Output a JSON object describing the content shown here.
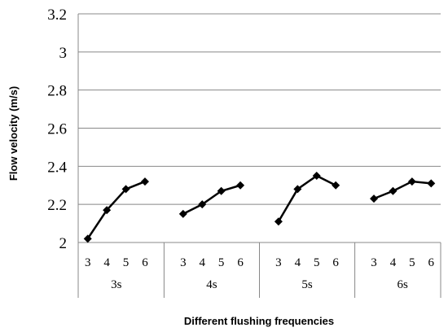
{
  "chart_data": {
    "type": "line",
    "title": "",
    "xlabel": "Different flushing frequencies",
    "ylabel": "Flow velocity (m/s)",
    "ylim": [
      2,
      3.2
    ],
    "yticks": [
      "2",
      "2.2",
      "2.4",
      "2.6",
      "2.8",
      "3",
      "3.2"
    ],
    "grid": true,
    "legend": "none",
    "color": "#000000",
    "groups": [
      {
        "label": "3s",
        "categories": [
          "3",
          "4",
          "5",
          "6"
        ],
        "values": [
          2.02,
          2.17,
          2.28,
          2.32
        ]
      },
      {
        "label": "4s",
        "categories": [
          "3",
          "4",
          "5",
          "6"
        ],
        "values": [
          2.15,
          2.2,
          2.27,
          2.3
        ]
      },
      {
        "label": "5s",
        "categories": [
          "3",
          "4",
          "5",
          "6"
        ],
        "values": [
          2.11,
          2.28,
          2.35,
          2.3
        ]
      },
      {
        "label": "6s",
        "categories": [
          "3",
          "4",
          "5",
          "6"
        ],
        "values": [
          2.23,
          2.27,
          2.32,
          2.31
        ]
      }
    ]
  }
}
